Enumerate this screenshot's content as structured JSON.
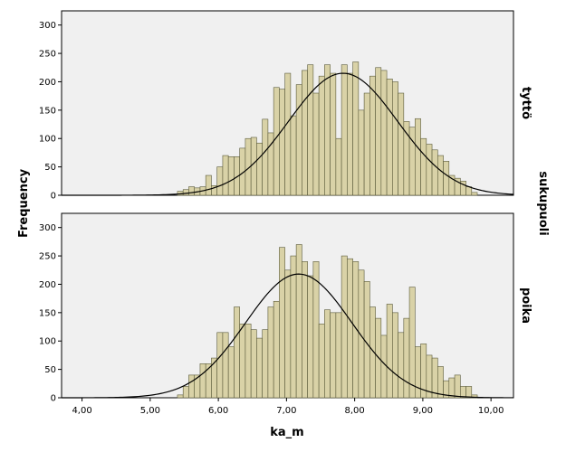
{
  "chart_data": {
    "type": "bar",
    "xlabel": "ka_m",
    "ylabel": "Frequency",
    "facet_title": "sukupuoli",
    "xlim": [
      3.7,
      10.33
    ],
    "ylim": [
      0,
      325
    ],
    "xticks": [
      4.0,
      5.0,
      6.0,
      7.0,
      8.0,
      9.0,
      10.0
    ],
    "xtick_labels": [
      "4,00",
      "5,00",
      "6,00",
      "7,00",
      "8,00",
      "9,00",
      "10,00"
    ],
    "yticks": [
      0,
      50,
      100,
      150,
      200,
      250,
      300
    ],
    "ytick_labels": [
      "0",
      "50",
      "100",
      "150",
      "200",
      "250",
      "300"
    ],
    "bin_start": 5.4,
    "bin_width": 0.083,
    "bar_color": "#d9d2a7",
    "bar_edge": "#5a5a3a",
    "panel_bg": "#f0f0f0",
    "panels": [
      {
        "label": "tyttö",
        "values": [
          7,
          10,
          15,
          13,
          15,
          35,
          17,
          50,
          70,
          68,
          68,
          83,
          100,
          102,
          92,
          134,
          110,
          190,
          187,
          215,
          140,
          195,
          220,
          230,
          180,
          210,
          230,
          215,
          100,
          230,
          215,
          235,
          150,
          180,
          210,
          225,
          220,
          205,
          200,
          180,
          130,
          120,
          135,
          100,
          90,
          80,
          70,
          60,
          35,
          30,
          25,
          15,
          5
        ],
        "normal": {
          "mean": 7.83,
          "sd": 0.8,
          "peak": 215
        }
      },
      {
        "label": "poika",
        "values": [
          5,
          20,
          40,
          40,
          60,
          60,
          70,
          115,
          115,
          90,
          160,
          130,
          130,
          120,
          105,
          120,
          160,
          170,
          265,
          225,
          250,
          270,
          240,
          215,
          240,
          130,
          155,
          150,
          150,
          250,
          245,
          240,
          225,
          205,
          160,
          140,
          110,
          165,
          150,
          115,
          140,
          195,
          90,
          95,
          75,
          70,
          55,
          30,
          35,
          40,
          20,
          20,
          5
        ],
        "normal": {
          "mean": 7.18,
          "sd": 0.78,
          "peak": 218
        }
      }
    ]
  }
}
